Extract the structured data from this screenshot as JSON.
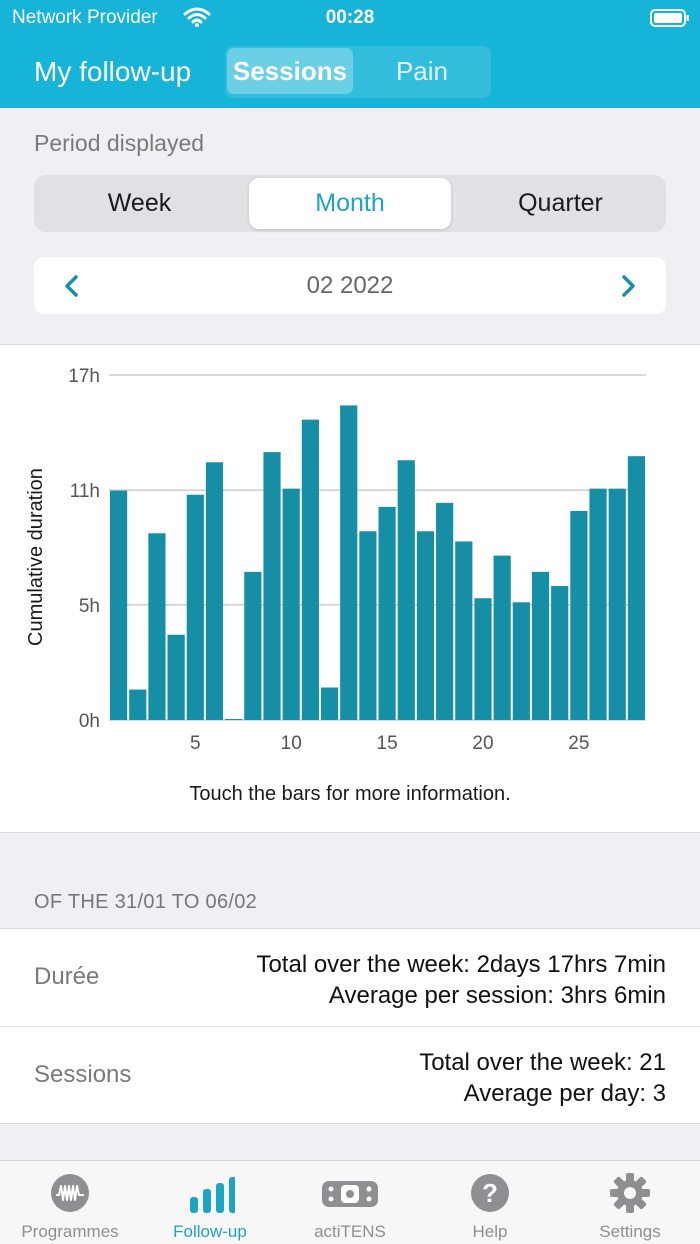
{
  "status_bar": {
    "carrier": "Network Provider",
    "time": "00:28"
  },
  "header": {
    "title": "My follow-up",
    "tabs": [
      {
        "label": "Sessions",
        "selected": true
      },
      {
        "label": "Pain",
        "selected": false
      }
    ]
  },
  "period": {
    "label": "Period displayed",
    "options": [
      "Week",
      "Month",
      "Quarter"
    ],
    "selected": "Month"
  },
  "date_nav": {
    "label": "02 2022"
  },
  "chart_data": {
    "type": "bar",
    "ylabel": "Cumulative duration",
    "xlabel": "",
    "y_tick_labels": [
      "17h",
      "11h",
      "5h",
      "0h"
    ],
    "y_ticks": [
      17,
      11.33,
      5.67,
      0
    ],
    "ylim": [
      0,
      17
    ],
    "x_tick_labels": [
      "5",
      "10",
      "15",
      "20",
      "25"
    ],
    "x_ticks": [
      5,
      10,
      15,
      20,
      25
    ],
    "categories": [
      1,
      2,
      3,
      4,
      5,
      6,
      7,
      8,
      9,
      10,
      11,
      12,
      13,
      14,
      15,
      16,
      17,
      18,
      19,
      20,
      21,
      22,
      23,
      24,
      25,
      26,
      27,
      28
    ],
    "values": [
      11.3,
      1.5,
      9.2,
      4.2,
      11.1,
      12.7,
      0.05,
      7.3,
      13.2,
      11.4,
      14.8,
      1.6,
      15.5,
      9.3,
      10.5,
      12.8,
      9.3,
      10.7,
      8.8,
      6.0,
      8.1,
      5.8,
      7.3,
      6.6,
      10.3,
      11.4,
      11.4,
      13.0
    ],
    "color": "#168fa6",
    "grid": true,
    "hint": "Touch the bars for more information."
  },
  "summary": {
    "header": "OF THE 31/01 TO 06/02",
    "rows": [
      {
        "label": "Durée",
        "line1": "Total over the week: 2days 17hrs 7min",
        "line2": "Average per session: 3hrs 6min"
      },
      {
        "label": "Sessions",
        "line1": "Total over the week: 21",
        "line2": "Average per day: 3"
      }
    ]
  },
  "tab_bar": {
    "items": [
      {
        "label": "Programmes",
        "icon": "waveform-icon",
        "active": false
      },
      {
        "label": "Follow-up",
        "icon": "bar-chart-icon",
        "active": true
      },
      {
        "label": "actiTENS",
        "icon": "device-icon",
        "active": false
      },
      {
        "label": "Help",
        "icon": "help-icon",
        "active": false
      },
      {
        "label": "Settings",
        "icon": "gear-icon",
        "active": false
      }
    ]
  },
  "colors": {
    "header": "#16b4d8",
    "accent": "#1fa3c2",
    "bar": "#168fa6"
  }
}
